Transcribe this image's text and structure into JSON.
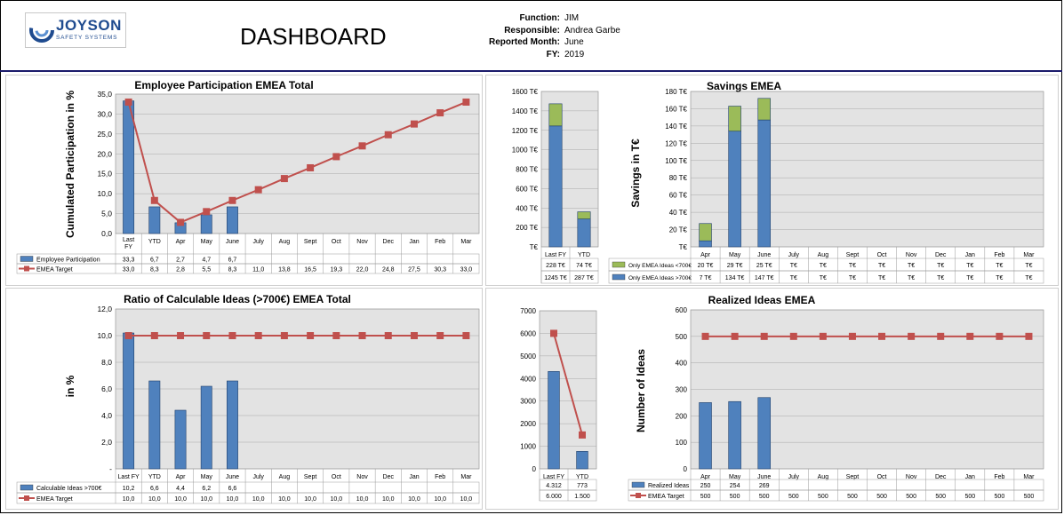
{
  "header": {
    "logo_name": "JOYSON",
    "logo_sub": "SAFETY SYSTEMS",
    "title": "DASHBOARD",
    "labels": [
      "Function:",
      "Responsible:",
      "Reported Month:",
      "FY:"
    ],
    "values": [
      "JIM",
      "Andrea Garbe",
      "June",
      "2019"
    ]
  },
  "colors": {
    "bar": "#4f81bd",
    "bar2": "#9bbb59",
    "line": "#c0504d",
    "plot_bg": "#e3e3e3"
  },
  "chart_data": [
    {
      "id": "participation",
      "type": "bar",
      "title": "Employee Participation EMEA Total",
      "ylabel": "Cumulated Participation in %",
      "categories": [
        "Last FY",
        "YTD",
        "Apr",
        "May",
        "June",
        "July",
        "Aug",
        "Sept",
        "Oct",
        "Nov",
        "Dec",
        "Jan",
        "Feb",
        "Mar"
      ],
      "ylim": [
        0,
        35
      ],
      "yticks": [
        "0,0",
        "5,0",
        "10,0",
        "15,0",
        "20,0",
        "25,0",
        "30,0",
        "35,0"
      ],
      "series": [
        {
          "name": "Employee Participation",
          "kind": "bar",
          "values": [
            33.3,
            6.7,
            2.7,
            4.7,
            6.7,
            null,
            null,
            null,
            null,
            null,
            null,
            null,
            null,
            null
          ],
          "labels": [
            "33,3",
            "6,7",
            "2,7",
            "4,7",
            "6,7",
            "",
            "",
            "",
            "",
            "",
            "",
            "",
            "",
            ""
          ]
        },
        {
          "name": "EMEA Target",
          "kind": "line",
          "values": [
            33.0,
            8.3,
            2.8,
            5.5,
            8.3,
            11.0,
            13.8,
            16.5,
            19.3,
            22.0,
            24.8,
            27.5,
            30.3,
            33.0
          ],
          "labels": [
            "33,0",
            "8,3",
            "2,8",
            "5,5",
            "8,3",
            "11,0",
            "13,8",
            "16,5",
            "19,3",
            "22,0",
            "24,8",
            "27,5",
            "30,3",
            "33,0"
          ]
        }
      ]
    },
    {
      "id": "savings_total",
      "type": "bar",
      "categories": [
        "Last FY",
        "YTD"
      ],
      "ylim": [
        0,
        1600
      ],
      "yticks": [
        "T€",
        "200 T€",
        "400 T€",
        "600 T€",
        "800 T€",
        "1000 T€",
        "1200 T€",
        "1400 T€",
        "1600 T€"
      ],
      "series": [
        {
          "kind": "bar",
          "color": "bar",
          "values": [
            1245,
            287
          ],
          "labels": [
            "1245 T€",
            "287 T€"
          ]
        },
        {
          "kind": "bar",
          "color": "bar2",
          "values": [
            228,
            74
          ],
          "labels": [
            "228 T€",
            "74 T€"
          ]
        }
      ]
    },
    {
      "id": "savings",
      "type": "bar",
      "title": "Savings EMEA",
      "ylabel": "Savings in T€",
      "categories": [
        "Apr",
        "May",
        "June",
        "July",
        "Aug",
        "Sept",
        "Oct",
        "Nov",
        "Dec",
        "Jan",
        "Feb",
        "Mar"
      ],
      "ylim": [
        0,
        180
      ],
      "yticks": [
        "T€",
        "20 T€",
        "40 T€",
        "60 T€",
        "80 T€",
        "100 T€",
        "120 T€",
        "140 T€",
        "160 T€",
        "180 T€"
      ],
      "series": [
        {
          "name": "Only EMEA Ideas >700€",
          "kind": "bar",
          "color": "bar",
          "values": [
            7,
            134,
            147,
            null,
            null,
            null,
            null,
            null,
            null,
            null,
            null,
            null
          ],
          "labels": [
            "7 T€",
            "134 T€",
            "147 T€",
            "T€",
            "T€",
            "T€",
            "T€",
            "T€",
            "T€",
            "T€",
            "T€",
            "T€"
          ]
        },
        {
          "name": "Only EMEA Ideas <700€",
          "kind": "bar",
          "color": "bar2",
          "values": [
            20,
            29,
            25,
            null,
            null,
            null,
            null,
            null,
            null,
            null,
            null,
            null
          ],
          "labels": [
            "20 T€",
            "29 T€",
            "25 T€",
            "T€",
            "T€",
            "T€",
            "T€",
            "T€",
            "T€",
            "T€",
            "T€",
            "T€"
          ]
        }
      ]
    },
    {
      "id": "ratio",
      "type": "bar",
      "title": "Ratio of Calculable Ideas (>700€) EMEA Total",
      "ylabel": "in %",
      "categories": [
        "Last FY",
        "YTD",
        "Apr",
        "May",
        "June",
        "July",
        "Aug",
        "Sept",
        "Oct",
        "Nov",
        "Dec",
        "Jan",
        "Feb",
        "Mar"
      ],
      "ylim": [
        0,
        12
      ],
      "yticks": [
        "-",
        "2,0",
        "4,0",
        "6,0",
        "8,0",
        "10,0",
        "12,0"
      ],
      "series": [
        {
          "name": "Calculable Ideas >700€",
          "kind": "bar",
          "values": [
            10.2,
            6.6,
            4.4,
            6.2,
            6.6,
            null,
            null,
            null,
            null,
            null,
            null,
            null,
            null,
            null
          ],
          "labels": [
            "10,2",
            "6,6",
            "4,4",
            "6,2",
            "6,6",
            "",
            "",
            "",
            "",
            "",
            "",
            "",
            "",
            ""
          ]
        },
        {
          "name": "EMEA Target",
          "kind": "line",
          "values": [
            10,
            10,
            10,
            10,
            10,
            10,
            10,
            10,
            10,
            10,
            10,
            10,
            10,
            10
          ],
          "labels": [
            "10,0",
            "10,0",
            "10,0",
            "10,0",
            "10,0",
            "10,0",
            "10,0",
            "10,0",
            "10,0",
            "10,0",
            "10,0",
            "10,0",
            "10,0",
            "10,0"
          ]
        }
      ]
    },
    {
      "id": "ideas_total",
      "type": "bar",
      "categories": [
        "Last FY",
        "YTD"
      ],
      "ylim": [
        0,
        7000
      ],
      "yticks": [
        "0",
        "1000",
        "2000",
        "3000",
        "4000",
        "5000",
        "6000",
        "7000"
      ],
      "series": [
        {
          "kind": "bar",
          "values": [
            4312,
            773
          ],
          "labels": [
            "4.312",
            "773"
          ]
        },
        {
          "kind": "line",
          "values": [
            6000,
            1500
          ],
          "labels": [
            "6.000",
            "1.500"
          ]
        }
      ]
    },
    {
      "id": "realized",
      "type": "bar",
      "title": "Realized Ideas EMEA",
      "ylabel": "Number of Ideas",
      "categories": [
        "Apr",
        "May",
        "June",
        "July",
        "Aug",
        "Sept",
        "Oct",
        "Nov",
        "Dec",
        "Jan",
        "Feb",
        "Mar"
      ],
      "ylim": [
        0,
        600
      ],
      "yticks": [
        "0",
        "100",
        "200",
        "300",
        "400",
        "500",
        "600"
      ],
      "series": [
        {
          "name": "Realized Ideas",
          "kind": "bar",
          "values": [
            250,
            254,
            269,
            null,
            null,
            null,
            null,
            null,
            null,
            null,
            null,
            null
          ],
          "labels": [
            "250",
            "254",
            "269",
            "",
            "",
            "",
            "",
            "",
            "",
            "",
            "",
            ""
          ]
        },
        {
          "name": "EMEA Target",
          "kind": "line",
          "values": [
            500,
            500,
            500,
            500,
            500,
            500,
            500,
            500,
            500,
            500,
            500,
            500
          ],
          "labels": [
            "500",
            "500",
            "500",
            "500",
            "500",
            "500",
            "500",
            "500",
            "500",
            "500",
            "500",
            "500"
          ]
        }
      ]
    }
  ]
}
